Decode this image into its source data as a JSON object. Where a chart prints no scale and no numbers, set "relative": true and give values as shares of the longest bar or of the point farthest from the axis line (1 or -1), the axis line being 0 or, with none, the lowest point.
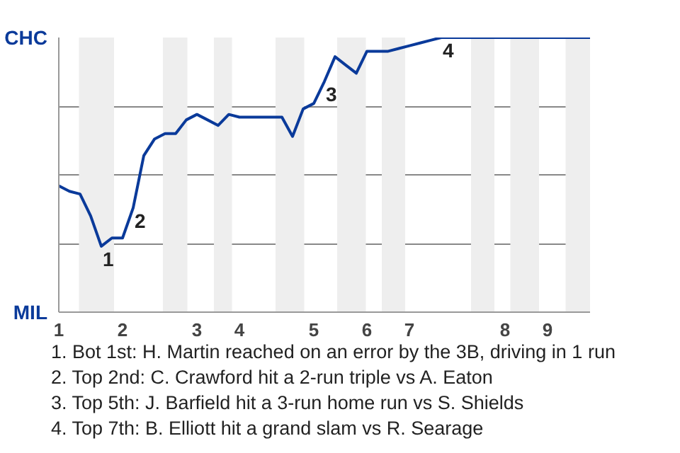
{
  "chart_data": {
    "type": "line",
    "relative": true,
    "categories": [
      "1",
      null,
      null,
      null,
      null,
      null,
      "2",
      null,
      null,
      null,
      null,
      null,
      null,
      "3",
      null,
      null,
      null,
      "4",
      null,
      null,
      null,
      null,
      null,
      null,
      "5",
      null,
      null,
      null,
      null,
      "6",
      null,
      null,
      null,
      "7",
      null,
      null,
      null,
      null,
      null,
      null,
      null,
      null,
      "8",
      null,
      null,
      null,
      "9",
      null,
      null,
      null,
      null
    ],
    "series": [
      {
        "color": "#0a3a9a",
        "values": [
          0.46,
          0.44,
          0.43,
          0.35,
          0.24,
          0.27,
          0.27,
          0.38,
          0.57,
          0.63,
          0.65,
          0.65,
          0.7,
          0.72,
          0.7,
          0.68,
          0.72,
          0.71,
          0.71,
          0.71,
          0.71,
          0.71,
          0.64,
          0.74,
          0.76,
          0.84,
          0.93,
          0.9,
          0.87,
          0.95,
          0.95,
          0.95,
          0.96,
          0.97,
          0.98,
          0.99,
          1.0,
          1.0,
          1.0,
          1.0,
          1.0,
          1.0,
          1.0,
          1.0,
          1.0,
          1.0,
          1.0,
          1.0,
          1.0,
          1.0,
          1.0
        ],
        "name": null
      }
    ],
    "grid": "y",
    "line_style": "solid",
    "marker": "none",
    "annotations": [
      "CHC",
      "MIL",
      {
        "text": "1",
        "y": 0.24
      },
      {
        "text": "2",
        "y": 0.38
      },
      {
        "text": "3",
        "y": 0.84
      },
      {
        "text": "4",
        "y": 1.0
      },
      "1. Bot 1st: H. Martin reached on an error by the 3B, driving in 1 run",
      "2. Top 2nd: C. Crawford hit a 2-run triple vs A. Eaton",
      "3. Top 5th: J. Barfield hit a 3-run home run vs S. Shields",
      "4. Top 7th: B. Elliott hit a grand slam vs R. Searage"
    ]
  }
}
